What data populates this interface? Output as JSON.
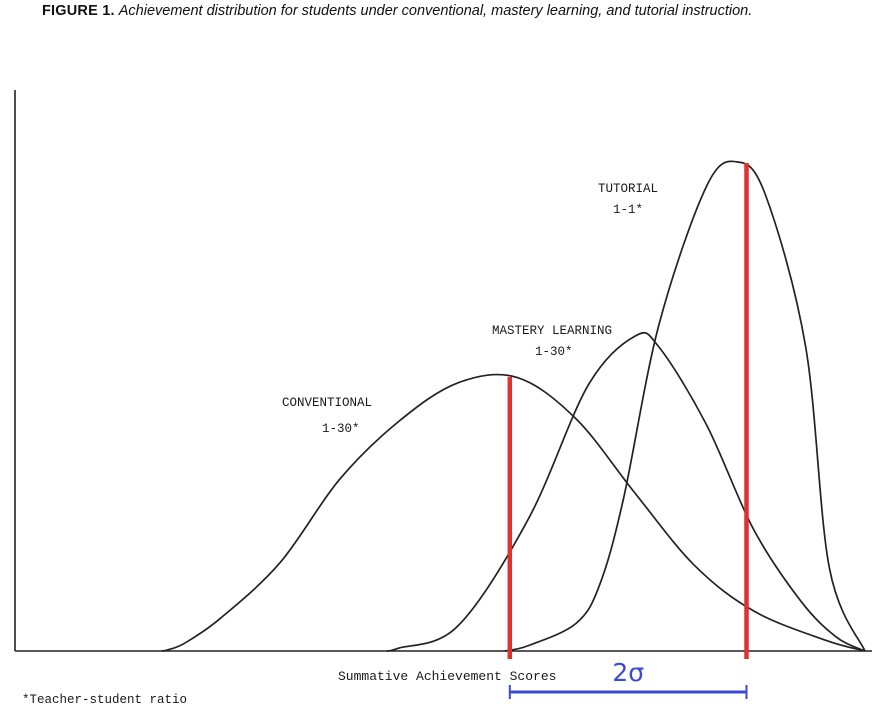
{
  "figure": {
    "label": "FIGURE 1.",
    "caption": "Achievement distribution for students under conventional, mastery learning, and tutorial instruction."
  },
  "chart_data": {
    "type": "line",
    "xlabel": "Summative Achievement Scores",
    "ylabel": "",
    "footnote": "*Teacher-student ratio",
    "series": [
      {
        "name": "CONVENTIONAL",
        "ratio": "1-30*",
        "color": "#222222",
        "x": [
          0.0,
          0.03,
          0.1,
          0.25,
          0.5,
          0.75,
          1.0,
          1.25,
          1.5,
          1.75,
          2.0,
          2.25,
          2.5,
          2.8,
          2.97
        ],
        "y": [
          0.0,
          0.005,
          0.03,
          0.12,
          0.32,
          0.62,
          0.83,
          0.97,
          0.99,
          0.84,
          0.57,
          0.31,
          0.145,
          0.04,
          0.0
        ]
      },
      {
        "name": "MASTERY LEARNING",
        "ratio": "1-30*",
        "color": "#222222",
        "x": [
          0.95,
          1.0,
          1.25,
          1.55,
          1.8,
          2.0,
          2.1,
          2.3,
          2.5,
          2.7,
          2.85,
          2.97
        ],
        "y": [
          0.0,
          0.01,
          0.09,
          0.48,
          0.96,
          1.14,
          1.1,
          0.82,
          0.44,
          0.18,
          0.05,
          0.0
        ]
      },
      {
        "name": "TUTORIAL",
        "ratio": "1-1*",
        "color": "#222222",
        "x": [
          1.45,
          1.55,
          1.75,
          1.85,
          1.95,
          2.1,
          2.3,
          2.43,
          2.55,
          2.72,
          2.82,
          2.97
        ],
        "y": [
          0.0,
          0.02,
          0.1,
          0.24,
          0.55,
          1.18,
          1.68,
          1.77,
          1.65,
          1.1,
          0.3,
          0.0
        ]
      }
    ],
    "markers": [
      {
        "label": "",
        "x": 1.47,
        "color": "#e03131"
      },
      {
        "label": "",
        "x": 2.47,
        "color": "#e03131"
      }
    ],
    "annotation": {
      "label": "2σ",
      "from": 1.47,
      "to": 2.47,
      "color": "#3b48d6"
    },
    "xlim": [
      -0.62,
      3.0
    ],
    "ylim": [
      0,
      2.03
    ]
  }
}
